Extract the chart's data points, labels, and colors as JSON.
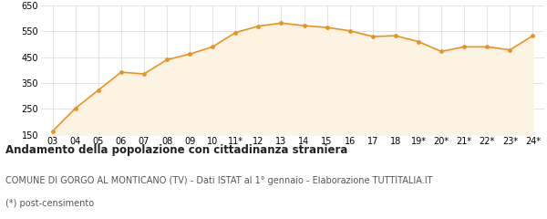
{
  "x_labels": [
    "03",
    "04",
    "05",
    "06",
    "07",
    "08",
    "09",
    "10",
    "11*",
    "12",
    "13",
    "14",
    "15",
    "16",
    "17",
    "18",
    "19*",
    "20*",
    "21*",
    "22*",
    "23*",
    "24*"
  ],
  "y_values": [
    163,
    252,
    322,
    392,
    385,
    440,
    462,
    490,
    545,
    570,
    582,
    572,
    565,
    552,
    530,
    533,
    510,
    472,
    490,
    490,
    478,
    533
  ],
  "line_color": "#e8951e",
  "fill_color": "#fdf3e3",
  "marker_color": "#e8951e",
  "bg_color": "#ffffff",
  "grid_color": "#d8d8d8",
  "ylim": [
    150,
    650
  ],
  "yticks": [
    150,
    250,
    350,
    450,
    550,
    650
  ],
  "title": "Andamento della popolazione con cittadinanza straniera",
  "subtitle": "COMUNE DI GORGO AL MONTICANO (TV) - Dati ISTAT al 1° gennaio - Elaborazione TUTTITALIA.IT",
  "footnote": "(*) post-censimento",
  "title_fontsize": 8.5,
  "subtitle_fontsize": 7.0,
  "footnote_fontsize": 7.0,
  "tick_fontsize": 7.0
}
